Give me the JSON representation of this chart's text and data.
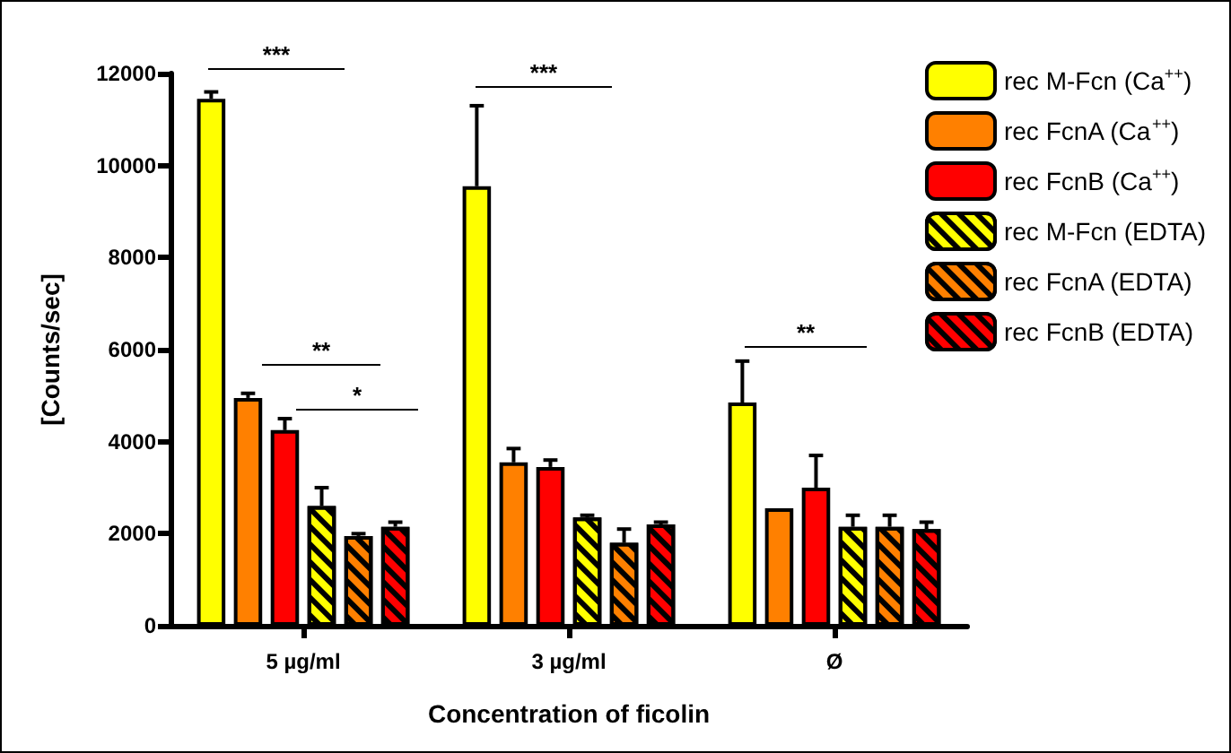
{
  "chart_data": {
    "type": "bar",
    "xlabel": "Concentration of ficolin",
    "ylabel": "[Counts/sec]",
    "categories": [
      "5 µg/ml",
      "3 µg/ml",
      "Ø"
    ],
    "series": [
      {
        "name": "rec M-Fcn (Ca$^{++}$)",
        "color": "#ffff00",
        "values": [
          11450,
          9550,
          4850
        ],
        "errors": [
          150,
          1750,
          900
        ]
      },
      {
        "name": "rec FcnA (Ca$^{++}$)",
        "color": "#ff8000",
        "values": [
          4950,
          3550,
          2550
        ],
        "errors": [
          100,
          300,
          null
        ]
      },
      {
        "name": "rec FcnB (Ca$^{++}$)",
        "color": "#ff0000",
        "values": [
          4250,
          3450,
          3000
        ],
        "errors": [
          250,
          150,
          700
        ]
      },
      {
        "name": "rec M-Fcn (EDTA)",
        "color": "#ffff00",
        "values": [
          2600,
          2350,
          2150
        ],
        "errors": [
          400,
          50,
          250
        ]
      },
      {
        "name": "rec FcnA (EDTA)",
        "color": "#ff8000",
        "values": [
          1950,
          1800,
          2150
        ],
        "errors": [
          50,
          300,
          250
        ]
      },
      {
        "name": "rec FcnB (EDTA)",
        "color": "#ff0000",
        "values": [
          2150,
          2200,
          2100
        ],
        "errors": [
          100,
          50,
          150
        ]
      }
    ],
    "ylim": [
      0,
      12000
    ],
    "yticks": [
      0,
      2000,
      4000,
      6000,
      8000,
      10000,
      12000
    ],
    "grid": false,
    "legend": "top right",
    "annotations": [
      "***",
      "**",
      "*",
      "***",
      "**"
    ]
  }
}
